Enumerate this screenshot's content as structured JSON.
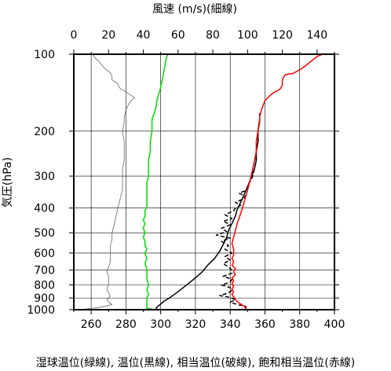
{
  "chart_data": {
    "type": "line",
    "x_bottom_label": "湿球温位(緑線), 温位(黒線), 相当温位(破線), 飽和相当温位(赤線)",
    "x_top_label": "風速 (m/s)(細線)",
    "y_label": "気圧(hPa)",
    "y_scale": "log",
    "ylim": [
      1000,
      100
    ],
    "xlim_bottom": [
      250,
      400
    ],
    "xlim_top": [
      0,
      150
    ],
    "x_bottom_ticks": [
      260,
      280,
      300,
      320,
      340,
      360,
      380,
      400
    ],
    "x_top_ticks": [
      0,
      20,
      40,
      60,
      80,
      100,
      120,
      140
    ],
    "y_ticks": [
      100,
      200,
      300,
      400,
      500,
      600,
      700,
      800,
      900,
      1000
    ],
    "grid": true,
    "series": [
      {
        "name": "湿球温位",
        "color": "#00dd00",
        "style": "solid",
        "axis": "bottom",
        "points": [
          [
            296,
            1000
          ],
          [
            292,
            985
          ],
          [
            292,
            960
          ],
          [
            292,
            930
          ],
          [
            292,
            900
          ],
          [
            293,
            870
          ],
          [
            292,
            840
          ],
          [
            293,
            800
          ],
          [
            292,
            760
          ],
          [
            292,
            720
          ],
          [
            292,
            690
          ],
          [
            291,
            660
          ],
          [
            292,
            630
          ],
          [
            291,
            600
          ],
          [
            292,
            580
          ],
          [
            291,
            560
          ],
          [
            291,
            540
          ],
          [
            290,
            520
          ],
          [
            291,
            500
          ],
          [
            290,
            480
          ],
          [
            291,
            460
          ],
          [
            290,
            445
          ],
          [
            291,
            430
          ],
          [
            291,
            410
          ],
          [
            292,
            395
          ],
          [
            292,
            380
          ],
          [
            292,
            360
          ],
          [
            292,
            340
          ],
          [
            292,
            320
          ],
          [
            293,
            300
          ],
          [
            293,
            280
          ],
          [
            293,
            260
          ],
          [
            294,
            240
          ],
          [
            294,
            220
          ],
          [
            295,
            200
          ],
          [
            295,
            180
          ],
          [
            297,
            165
          ],
          [
            298,
            150
          ],
          [
            300,
            135
          ],
          [
            301,
            125
          ],
          [
            302,
            115
          ],
          [
            303,
            105
          ],
          [
            304,
            100
          ]
        ]
      },
      {
        "name": "温位",
        "color": "#000000",
        "style": "solid",
        "axis": "bottom",
        "points": [
          [
            297,
            1000
          ],
          [
            298,
            975
          ],
          [
            300,
            950
          ],
          [
            302,
            925
          ],
          [
            305,
            900
          ],
          [
            308,
            870
          ],
          [
            312,
            830
          ],
          [
            316,
            790
          ],
          [
            320,
            750
          ],
          [
            324,
            710
          ],
          [
            327,
            670
          ],
          [
            331,
            630
          ],
          [
            334,
            590
          ],
          [
            336,
            555
          ],
          [
            338,
            520
          ],
          [
            339,
            490
          ],
          [
            341,
            460
          ],
          [
            343,
            430
          ],
          [
            344,
            405
          ],
          [
            346,
            380
          ],
          [
            348,
            355
          ],
          [
            350,
            330
          ],
          [
            352,
            305
          ],
          [
            354,
            280
          ],
          [
            355,
            260
          ],
          [
            355,
            240
          ],
          [
            356,
            220
          ],
          [
            356,
            200
          ],
          [
            357,
            180
          ],
          [
            357,
            170
          ]
        ]
      },
      {
        "name": "相当温位",
        "color": "#000000",
        "style": "dashed",
        "axis": "bottom",
        "points": [
          [
            298,
            1000
          ],
          [
            346,
            1000
          ],
          [
            349,
            985
          ],
          [
            349,
            970
          ],
          [
            344,
            955
          ],
          [
            340,
            935
          ],
          [
            343,
            915
          ],
          [
            340,
            895
          ],
          [
            334,
            880
          ],
          [
            339,
            860
          ],
          [
            341,
            840
          ],
          [
            340,
            820
          ],
          [
            335,
            800
          ],
          [
            340,
            780
          ],
          [
            341,
            760
          ],
          [
            336,
            740
          ],
          [
            341,
            720
          ],
          [
            341,
            700
          ],
          [
            339,
            680
          ],
          [
            336,
            660
          ],
          [
            340,
            640
          ],
          [
            337,
            620
          ],
          [
            341,
            600
          ],
          [
            337,
            580
          ],
          [
            339,
            560
          ],
          [
            335,
            540
          ],
          [
            340,
            525
          ],
          [
            332,
            510
          ],
          [
            338,
            495
          ],
          [
            335,
            480
          ],
          [
            340,
            465
          ],
          [
            336,
            450
          ],
          [
            341,
            440
          ],
          [
            337,
            425
          ],
          [
            342,
            410
          ],
          [
            343,
            400
          ],
          [
            346,
            390
          ],
          [
            343,
            380
          ],
          [
            347,
            370
          ],
          [
            349,
            360
          ],
          [
            345,
            350
          ],
          [
            350,
            340
          ],
          [
            351,
            320
          ],
          [
            353,
            300
          ],
          [
            354,
            280
          ],
          [
            355,
            260
          ],
          [
            355,
            240
          ],
          [
            356,
            220
          ],
          [
            356,
            200
          ],
          [
            357,
            180
          ],
          [
            357,
            170
          ]
        ]
      },
      {
        "name": "飽和相当温位",
        "color": "#ff0000",
        "style": "solid",
        "axis": "bottom",
        "points": [
          [
            349,
            1000
          ],
          [
            349,
            985
          ],
          [
            348,
            970
          ],
          [
            346,
            950
          ],
          [
            344,
            930
          ],
          [
            343,
            910
          ],
          [
            342,
            890
          ],
          [
            341,
            870
          ],
          [
            342,
            850
          ],
          [
            341,
            830
          ],
          [
            342,
            810
          ],
          [
            341,
            790
          ],
          [
            342,
            770
          ],
          [
            341,
            750
          ],
          [
            343,
            730
          ],
          [
            342,
            710
          ],
          [
            343,
            690
          ],
          [
            341,
            670
          ],
          [
            342,
            650
          ],
          [
            341,
            630
          ],
          [
            342,
            610
          ],
          [
            342,
            580
          ],
          [
            341,
            550
          ],
          [
            342,
            520
          ],
          [
            343,
            490
          ],
          [
            344,
            460
          ],
          [
            345,
            440
          ],
          [
            346,
            420
          ],
          [
            347,
            400
          ],
          [
            348,
            380
          ],
          [
            349,
            360
          ],
          [
            350,
            340
          ],
          [
            351,
            320
          ],
          [
            352,
            300
          ],
          [
            353,
            280
          ],
          [
            354,
            260
          ],
          [
            355,
            240
          ],
          [
            355,
            220
          ],
          [
            356,
            200
          ],
          [
            357,
            185
          ],
          [
            357,
            175
          ],
          [
            358,
            165
          ],
          [
            359,
            158
          ],
          [
            360,
            152
          ],
          [
            362,
            147
          ],
          [
            364,
            143
          ],
          [
            366,
            140
          ],
          [
            368,
            138
          ],
          [
            369,
            136
          ],
          [
            370,
            132
          ],
          [
            370,
            126
          ],
          [
            371,
            122
          ],
          [
            372,
            120
          ],
          [
            376,
            119
          ],
          [
            378,
            117
          ],
          [
            381,
            114
          ],
          [
            384,
            110
          ],
          [
            387,
            106
          ],
          [
            390,
            102
          ],
          [
            393,
            100
          ]
        ]
      },
      {
        "name": "風速",
        "color": "#666666",
        "style": "thin",
        "axis": "top",
        "points": [
          [
            3,
            1000
          ],
          [
            12,
            985
          ],
          [
            18,
            970
          ],
          [
            22,
            955
          ],
          [
            20,
            935
          ],
          [
            19,
            910
          ],
          [
            21,
            885
          ],
          [
            20,
            860
          ],
          [
            19,
            830
          ],
          [
            20,
            800
          ],
          [
            20,
            770
          ],
          [
            20,
            740
          ],
          [
            19,
            710
          ],
          [
            20,
            680
          ],
          [
            21,
            650
          ],
          [
            21,
            620
          ],
          [
            21,
            590
          ],
          [
            21,
            560
          ],
          [
            22,
            530
          ],
          [
            22,
            500
          ],
          [
            23,
            470
          ],
          [
            24,
            440
          ],
          [
            25,
            410
          ],
          [
            26,
            385
          ],
          [
            27,
            360
          ],
          [
            28,
            340
          ],
          [
            28,
            320
          ],
          [
            28,
            300
          ],
          [
            28,
            280
          ],
          [
            29,
            260
          ],
          [
            29,
            240
          ],
          [
            29,
            220
          ],
          [
            28,
            200
          ],
          [
            29,
            185
          ],
          [
            29,
            175
          ],
          [
            30,
            165
          ],
          [
            31,
            160
          ],
          [
            32,
            155
          ],
          [
            33,
            152
          ],
          [
            34,
            150
          ],
          [
            35,
            148
          ],
          [
            33,
            145
          ],
          [
            31,
            142
          ],
          [
            30,
            140
          ],
          [
            27,
            137
          ],
          [
            26,
            134
          ],
          [
            25,
            130
          ],
          [
            22,
            126
          ],
          [
            22,
            122
          ],
          [
            21,
            118
          ],
          [
            18,
            114
          ],
          [
            16,
            110
          ],
          [
            14,
            106
          ],
          [
            12,
            103
          ],
          [
            11,
            100
          ]
        ]
      }
    ]
  },
  "labels": {
    "top_axis_title": "風速 (m/s)(細線)",
    "y_axis_title": "気圧(hPa)",
    "bottom_axis_title": "湿球温位(緑線), 温位(黒線), 相当温位(破線), 飽和相当温位(赤線)"
  }
}
